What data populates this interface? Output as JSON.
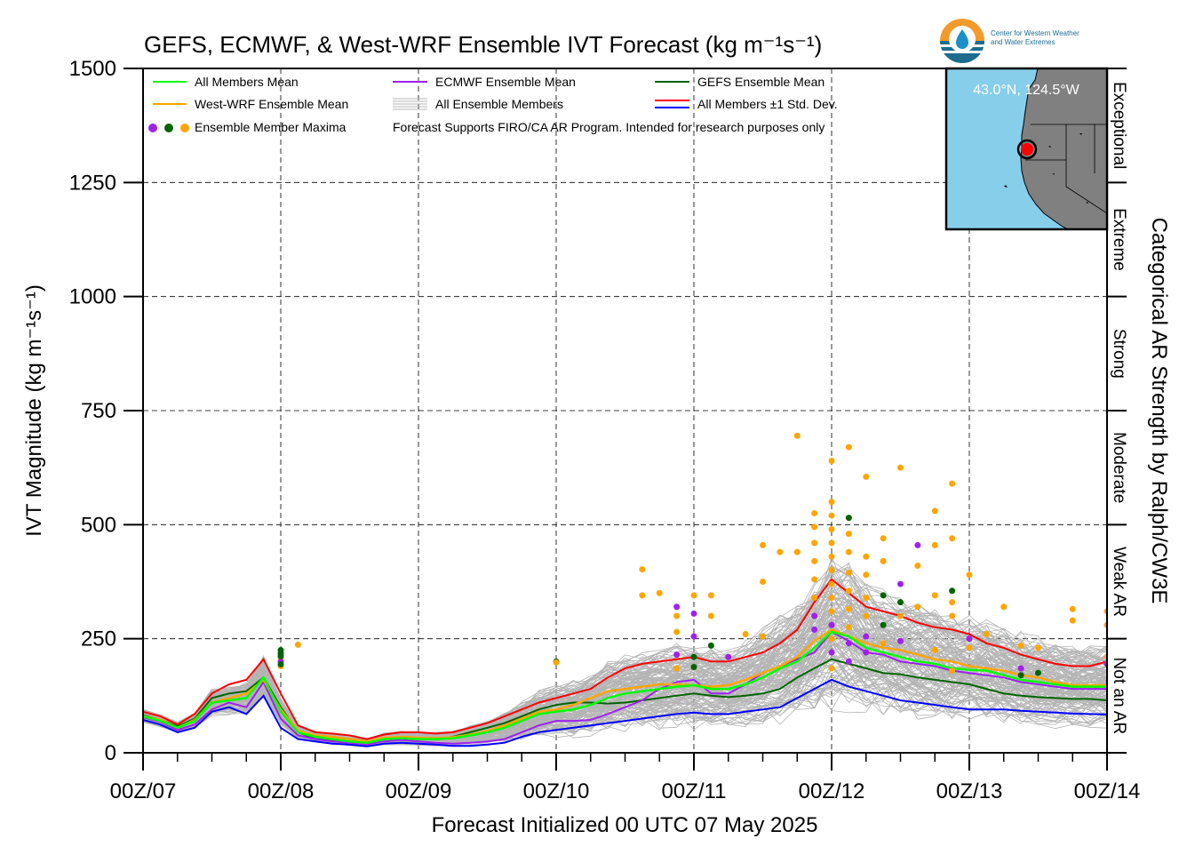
{
  "chart_data": {
    "type": "line",
    "title": "GEFS, ECMWF, & West-WRF Ensemble IVT Forecast (kg m⁻¹s⁻¹)",
    "xlabel": "Forecast Initialized 00 UTC 07 May 2025",
    "ylabel": "IVT Magnitude (kg m⁻¹s⁻¹)",
    "right_label": "Categorical AR Strength by Ralph/CW3E",
    "xlim": [
      0,
      168
    ],
    "ylim": [
      0,
      1500
    ],
    "x_unit": "forecast hours",
    "x_ticks": [
      {
        "x": 0,
        "label": "00Z/07"
      },
      {
        "x": 24,
        "label": "00Z/08"
      },
      {
        "x": 48,
        "label": "00Z/09"
      },
      {
        "x": 72,
        "label": "00Z/10"
      },
      {
        "x": 96,
        "label": "00Z/11"
      },
      {
        "x": 120,
        "label": "00Z/12"
      },
      {
        "x": 144,
        "label": "00Z/13"
      },
      {
        "x": 168,
        "label": "00Z/14"
      }
    ],
    "y_ticks": [
      0,
      250,
      500,
      750,
      1000,
      1250,
      1500
    ],
    "grid": true,
    "categories_ar": [
      {
        "label": "Not an AR",
        "range": [
          0,
          250
        ]
      },
      {
        "label": "Weak AR",
        "range": [
          250,
          500
        ]
      },
      {
        "label": "Moderate",
        "range": [
          500,
          750
        ]
      },
      {
        "label": "Strong",
        "range": [
          750,
          1000
        ]
      },
      {
        "label": "Extreme",
        "range": [
          1000,
          1250
        ]
      },
      {
        "label": "Exceptional",
        "range": [
          1250,
          1500
        ]
      }
    ],
    "x": [
      0,
      3,
      6,
      9,
      12,
      15,
      18,
      21,
      24,
      27,
      30,
      33,
      36,
      39,
      42,
      45,
      48,
      51,
      54,
      57,
      60,
      63,
      66,
      69,
      72,
      75,
      78,
      81,
      84,
      87,
      90,
      93,
      96,
      99,
      102,
      105,
      108,
      111,
      114,
      117,
      120,
      123,
      126,
      129,
      132,
      135,
      138,
      141,
      144,
      147,
      150,
      153,
      156,
      159,
      162,
      165,
      168
    ],
    "series": [
      {
        "name": "All Members Mean",
        "color": "#00ff00",
        "values": [
          80,
          70,
          55,
          70,
          110,
          115,
          120,
          165,
          90,
          45,
          35,
          30,
          25,
          22,
          30,
          32,
          30,
          30,
          32,
          38,
          45,
          55,
          70,
          85,
          90,
          95,
          105,
          120,
          130,
          135,
          140,
          145,
          148,
          140,
          140,
          150,
          165,
          185,
          200,
          230,
          265,
          255,
          230,
          220,
          210,
          200,
          195,
          185,
          182,
          180,
          170,
          160,
          155,
          150,
          145,
          145,
          145
        ]
      },
      {
        "name": "West-WRF Ensemble Mean",
        "color": "#ffa500",
        "values": [
          80,
          72,
          55,
          72,
          110,
          120,
          130,
          160,
          95,
          48,
          38,
          35,
          30,
          25,
          33,
          35,
          33,
          32,
          34,
          40,
          48,
          60,
          75,
          90,
          95,
          105,
          120,
          135,
          140,
          145,
          150,
          150,
          148,
          145,
          148,
          160,
          175,
          190,
          210,
          245,
          270,
          255,
          240,
          230,
          225,
          215,
          205,
          200,
          190,
          185,
          180,
          170,
          165,
          155,
          148,
          148,
          148
        ]
      },
      {
        "name": "ECMWF Ensemble Mean",
        "color": "#a020f0",
        "values": [
          78,
          68,
          50,
          62,
          95,
          110,
          100,
          155,
          75,
          38,
          30,
          25,
          22,
          18,
          25,
          28,
          25,
          22,
          20,
          22,
          25,
          30,
          45,
          60,
          70,
          70,
          72,
          85,
          100,
          115,
          140,
          155,
          160,
          130,
          130,
          150,
          175,
          190,
          205,
          220,
          265,
          245,
          220,
          215,
          200,
          195,
          190,
          180,
          175,
          170,
          165,
          155,
          150,
          145,
          140,
          140,
          140
        ]
      },
      {
        "name": "GEFS Ensemble Mean",
        "color": "#006400",
        "values": [
          82,
          72,
          58,
          75,
          120,
          130,
          135,
          165,
          100,
          45,
          30,
          28,
          25,
          22,
          30,
          32,
          30,
          30,
          35,
          45,
          55,
          65,
          80,
          95,
          105,
          110,
          110,
          108,
          110,
          115,
          120,
          125,
          130,
          125,
          122,
          125,
          130,
          140,
          165,
          185,
          205,
          195,
          185,
          175,
          172,
          165,
          160,
          155,
          150,
          140,
          130,
          125,
          122,
          120,
          118,
          118,
          115
        ]
      },
      {
        "name": "All Members ±1 Std. Dev. (upper)",
        "color": "#ff0000",
        "values": [
          90,
          80,
          62,
          85,
          130,
          150,
          160,
          205,
          130,
          60,
          45,
          42,
          38,
          30,
          40,
          45,
          45,
          42,
          45,
          55,
          65,
          80,
          95,
          110,
          120,
          130,
          140,
          165,
          185,
          195,
          200,
          205,
          210,
          200,
          200,
          210,
          220,
          240,
          270,
          330,
          380,
          350,
          320,
          310,
          300,
          285,
          275,
          270,
          260,
          240,
          230,
          215,
          205,
          195,
          190,
          190,
          200
        ]
      },
      {
        "name": "All Members ±1 Std. Dev. (lower)",
        "color": "#0000ff",
        "values": [
          72,
          62,
          45,
          55,
          90,
          100,
          85,
          125,
          55,
          30,
          25,
          20,
          18,
          14,
          20,
          22,
          20,
          18,
          15,
          15,
          18,
          22,
          35,
          45,
          50,
          55,
          60,
          65,
          70,
          75,
          80,
          85,
          88,
          85,
          85,
          90,
          95,
          100,
          120,
          140,
          160,
          145,
          135,
          125,
          115,
          110,
          105,
          100,
          95,
          95,
          95,
          92,
          90,
          88,
          86,
          85,
          84
        ]
      }
    ],
    "ensemble_members": {
      "name": "All Ensemble Members",
      "color": "#b4b4b4",
      "count": 150,
      "spread_basis": "mean ± deviation around All Members Mean"
    },
    "ensemble_maxima": [
      {
        "x": 24,
        "y": 225,
        "color": "#006400"
      },
      {
        "x": 24,
        "y": 218,
        "color": "#006400"
      },
      {
        "x": 24,
        "y": 190,
        "color": "#ffa500"
      },
      {
        "x": 24,
        "y": 208,
        "color": "#ffa500"
      },
      {
        "x": 24,
        "y": 200,
        "color": "#a020f0"
      },
      {
        "x": 24,
        "y": 212,
        "color": "#006400"
      },
      {
        "x": 24,
        "y": 194,
        "color": "#006400"
      },
      {
        "x": 27,
        "y": 237,
        "color": "#ffa500"
      },
      {
        "x": 72,
        "y": 200,
        "color": "#006400"
      },
      {
        "x": 72,
        "y": 198,
        "color": "#ffa500"
      },
      {
        "x": 87,
        "y": 402,
        "color": "#ffa500"
      },
      {
        "x": 87,
        "y": 345,
        "color": "#ffa500"
      },
      {
        "x": 90,
        "y": 350,
        "color": "#ffa500"
      },
      {
        "x": 93,
        "y": 320,
        "color": "#a020f0"
      },
      {
        "x": 93,
        "y": 300,
        "color": "#ffa500"
      },
      {
        "x": 93,
        "y": 265,
        "color": "#ffa500"
      },
      {
        "x": 93,
        "y": 215,
        "color": "#a020f0"
      },
      {
        "x": 93,
        "y": 185,
        "color": "#ffa500"
      },
      {
        "x": 96,
        "y": 345,
        "color": "#ffa500"
      },
      {
        "x": 96,
        "y": 305,
        "color": "#a020f0"
      },
      {
        "x": 96,
        "y": 255,
        "color": "#a020f0"
      },
      {
        "x": 96,
        "y": 210,
        "color": "#006400"
      },
      {
        "x": 96,
        "y": 188,
        "color": "#006400"
      },
      {
        "x": 99,
        "y": 345,
        "color": "#ffa500"
      },
      {
        "x": 99,
        "y": 300,
        "color": "#ffa500"
      },
      {
        "x": 99,
        "y": 235,
        "color": "#006400"
      },
      {
        "x": 102,
        "y": 210,
        "color": "#a020f0"
      },
      {
        "x": 105,
        "y": 260,
        "color": "#ffa500"
      },
      {
        "x": 108,
        "y": 455,
        "color": "#ffa500"
      },
      {
        "x": 108,
        "y": 375,
        "color": "#ffa500"
      },
      {
        "x": 108,
        "y": 255,
        "color": "#ffa500"
      },
      {
        "x": 111,
        "y": 440,
        "color": "#ffa500"
      },
      {
        "x": 114,
        "y": 695,
        "color": "#ffa500"
      },
      {
        "x": 114,
        "y": 440,
        "color": "#ffa500"
      },
      {
        "x": 117,
        "y": 525,
        "color": "#ffa500"
      },
      {
        "x": 117,
        "y": 495,
        "color": "#ffa500"
      },
      {
        "x": 117,
        "y": 460,
        "color": "#ffa500"
      },
      {
        "x": 117,
        "y": 420,
        "color": "#ffa500"
      },
      {
        "x": 117,
        "y": 380,
        "color": "#ffa500"
      },
      {
        "x": 117,
        "y": 340,
        "color": "#ffa500"
      },
      {
        "x": 117,
        "y": 300,
        "color": "#a020f0"
      },
      {
        "x": 117,
        "y": 270,
        "color": "#a020f0"
      },
      {
        "x": 120,
        "y": 640,
        "color": "#ffa500"
      },
      {
        "x": 120,
        "y": 550,
        "color": "#ffa500"
      },
      {
        "x": 120,
        "y": 520,
        "color": "#ffa500"
      },
      {
        "x": 120,
        "y": 490,
        "color": "#ffa500"
      },
      {
        "x": 120,
        "y": 460,
        "color": "#ffa500"
      },
      {
        "x": 120,
        "y": 430,
        "color": "#ffa500"
      },
      {
        "x": 120,
        "y": 400,
        "color": "#ffa500"
      },
      {
        "x": 120,
        "y": 370,
        "color": "#ffa500"
      },
      {
        "x": 120,
        "y": 340,
        "color": "#ffa500"
      },
      {
        "x": 120,
        "y": 310,
        "color": "#ffa500"
      },
      {
        "x": 120,
        "y": 280,
        "color": "#a020f0"
      },
      {
        "x": 120,
        "y": 250,
        "color": "#ffa500"
      },
      {
        "x": 120,
        "y": 220,
        "color": "#a020f0"
      },
      {
        "x": 120,
        "y": 185,
        "color": "#ffa500"
      },
      {
        "x": 123,
        "y": 670,
        "color": "#ffa500"
      },
      {
        "x": 123,
        "y": 515,
        "color": "#006400"
      },
      {
        "x": 123,
        "y": 480,
        "color": "#ffa500"
      },
      {
        "x": 123,
        "y": 440,
        "color": "#ffa500"
      },
      {
        "x": 123,
        "y": 395,
        "color": "#ffa500"
      },
      {
        "x": 123,
        "y": 355,
        "color": "#ffa500"
      },
      {
        "x": 123,
        "y": 315,
        "color": "#ffa500"
      },
      {
        "x": 123,
        "y": 275,
        "color": "#ffa500"
      },
      {
        "x": 123,
        "y": 240,
        "color": "#a020f0"
      },
      {
        "x": 123,
        "y": 200,
        "color": "#a020f0"
      },
      {
        "x": 126,
        "y": 605,
        "color": "#ffa500"
      },
      {
        "x": 126,
        "y": 430,
        "color": "#ffa500"
      },
      {
        "x": 126,
        "y": 390,
        "color": "#ffa500"
      },
      {
        "x": 126,
        "y": 340,
        "color": "#ffa500"
      },
      {
        "x": 126,
        "y": 300,
        "color": "#ffa500"
      },
      {
        "x": 126,
        "y": 255,
        "color": "#a020f0"
      },
      {
        "x": 126,
        "y": 220,
        "color": "#a020f0"
      },
      {
        "x": 129,
        "y": 470,
        "color": "#ffa500"
      },
      {
        "x": 129,
        "y": 420,
        "color": "#ffa500"
      },
      {
        "x": 129,
        "y": 345,
        "color": "#006400"
      },
      {
        "x": 129,
        "y": 280,
        "color": "#006400"
      },
      {
        "x": 129,
        "y": 240,
        "color": "#ffa500"
      },
      {
        "x": 132,
        "y": 625,
        "color": "#ffa500"
      },
      {
        "x": 132,
        "y": 370,
        "color": "#a020f0"
      },
      {
        "x": 132,
        "y": 330,
        "color": "#006400"
      },
      {
        "x": 132,
        "y": 300,
        "color": "#ffa500"
      },
      {
        "x": 132,
        "y": 245,
        "color": "#a020f0"
      },
      {
        "x": 135,
        "y": 455,
        "color": "#a020f0"
      },
      {
        "x": 135,
        "y": 410,
        "color": "#ffa500"
      },
      {
        "x": 135,
        "y": 320,
        "color": "#ffa500"
      },
      {
        "x": 138,
        "y": 530,
        "color": "#ffa500"
      },
      {
        "x": 138,
        "y": 455,
        "color": "#ffa500"
      },
      {
        "x": 138,
        "y": 345,
        "color": "#ffa500"
      },
      {
        "x": 138,
        "y": 225,
        "color": "#ffa500"
      },
      {
        "x": 141,
        "y": 590,
        "color": "#ffa500"
      },
      {
        "x": 141,
        "y": 470,
        "color": "#ffa500"
      },
      {
        "x": 141,
        "y": 355,
        "color": "#006400"
      },
      {
        "x": 141,
        "y": 330,
        "color": "#ffa500"
      },
      {
        "x": 141,
        "y": 300,
        "color": "#ffa500"
      },
      {
        "x": 141,
        "y": 180,
        "color": "#ffa500"
      },
      {
        "x": 144,
        "y": 390,
        "color": "#ffa500"
      },
      {
        "x": 144,
        "y": 250,
        "color": "#a020f0"
      },
      {
        "x": 144,
        "y": 230,
        "color": "#ffa500"
      },
      {
        "x": 147,
        "y": 260,
        "color": "#ffa500"
      },
      {
        "x": 150,
        "y": 320,
        "color": "#ffa500"
      },
      {
        "x": 153,
        "y": 185,
        "color": "#a020f0"
      },
      {
        "x": 153,
        "y": 170,
        "color": "#006400"
      },
      {
        "x": 153,
        "y": 235,
        "color": "#ffa500"
      },
      {
        "x": 156,
        "y": 175,
        "color": "#006400"
      },
      {
        "x": 156,
        "y": 230,
        "color": "#ffa500"
      },
      {
        "x": 162,
        "y": 315,
        "color": "#ffa500"
      },
      {
        "x": 162,
        "y": 290,
        "color": "#ffa500"
      },
      {
        "x": 168,
        "y": 310,
        "color": "#ffa500"
      },
      {
        "x": 168,
        "y": 280,
        "color": "#ffa500"
      },
      {
        "x": 168,
        "y": 210,
        "color": "#ffa500"
      },
      {
        "x": 168,
        "y": 195,
        "color": "#a020f0"
      }
    ],
    "legend": {
      "placement": "top-left",
      "entries": [
        {
          "label": "All Members Mean",
          "kind": "line",
          "color": "#00ff00"
        },
        {
          "label": "ECMWF Ensemble Mean",
          "kind": "line",
          "color": "#a020f0"
        },
        {
          "label": "GEFS Ensemble Mean",
          "kind": "line",
          "color": "#006400"
        },
        {
          "label": "West-WRF Ensemble Mean",
          "kind": "line",
          "color": "#ffa500"
        },
        {
          "label": "All Ensemble Members",
          "kind": "multi",
          "color": "#b4b4b4"
        },
        {
          "label": "All Members ±1 Std. Dev.",
          "kind": "pair",
          "colors": [
            "#ff0000",
            "#0000ff"
          ]
        },
        {
          "label": "Ensemble Member Maxima",
          "kind": "dots",
          "colors": [
            "#a020f0",
            "#006400",
            "#ffa500"
          ]
        }
      ],
      "note": "Forecast Supports FIRO/CA AR Program. Intended for research purposes only"
    },
    "inset_map": {
      "location_label": "43.0°N, 124.5°W",
      "ocean_color": "#87ceeb",
      "land_color": "#808080",
      "marker_color": "#ff0000"
    },
    "logo": {
      "line1": "Center for Western Weather",
      "line2": "and Water Extremes"
    }
  }
}
